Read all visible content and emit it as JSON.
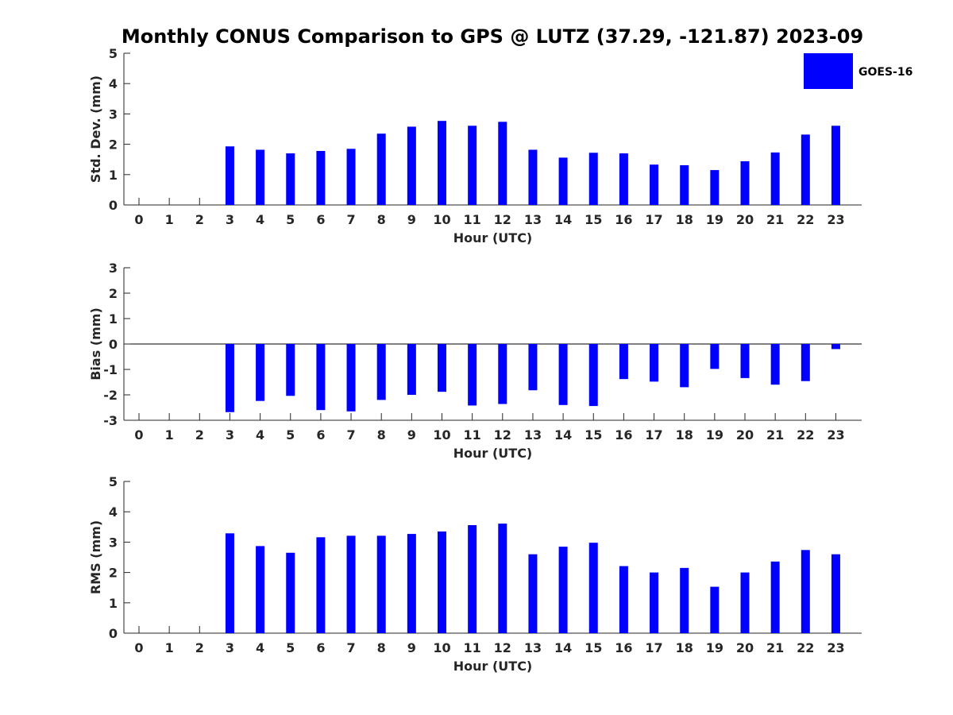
{
  "title": "Monthly CONUS Comparison to GPS @ LUTZ (37.29, -121.87) 2023-09",
  "legend": {
    "label": "GOES-16",
    "color": "#0000ff",
    "placement": "top-right"
  },
  "chart_data": [
    {
      "type": "bar",
      "categories": [
        "0",
        "1",
        "2",
        "3",
        "4",
        "5",
        "6",
        "7",
        "8",
        "9",
        "10",
        "11",
        "12",
        "13",
        "14",
        "15",
        "16",
        "17",
        "18",
        "19",
        "20",
        "21",
        "22",
        "23"
      ],
      "series": [
        {
          "name": "GOES-16",
          "values": [
            null,
            null,
            null,
            1.93,
            1.82,
            1.7,
            1.78,
            1.85,
            2.35,
            2.58,
            2.77,
            2.61,
            2.74,
            1.82,
            1.56,
            1.72,
            1.7,
            1.33,
            1.31,
            1.15,
            1.44,
            1.73,
            2.32,
            2.61
          ]
        }
      ],
      "xlabel": "Hour (UTC)",
      "ylabel": "Std. Dev. (mm)",
      "ylim": [
        0,
        5
      ],
      "yticks": [
        "0",
        "1",
        "2",
        "3",
        "4",
        "5"
      ],
      "grid": false
    },
    {
      "type": "bar",
      "categories": [
        "0",
        "1",
        "2",
        "3",
        "4",
        "5",
        "6",
        "7",
        "8",
        "9",
        "10",
        "11",
        "12",
        "13",
        "14",
        "15",
        "16",
        "17",
        "18",
        "19",
        "20",
        "21",
        "22",
        "23"
      ],
      "series": [
        {
          "name": "GOES-16",
          "values": [
            null,
            null,
            null,
            -2.68,
            -2.24,
            -2.04,
            -2.6,
            -2.65,
            -2.2,
            -2.0,
            -1.88,
            -2.42,
            -2.36,
            -1.82,
            -2.4,
            -2.44,
            -1.38,
            -1.48,
            -1.7,
            -0.98,
            -1.34,
            -1.6,
            -1.46,
            -0.2
          ]
        }
      ],
      "xlabel": "Hour (UTC)",
      "ylabel": "Bias (mm)",
      "ylim": [
        -3,
        3
      ],
      "yticks": [
        "-3",
        "-2",
        "-1",
        "0",
        "1",
        "2",
        "3"
      ],
      "grid": false
    },
    {
      "type": "bar",
      "categories": [
        "0",
        "1",
        "2",
        "3",
        "4",
        "5",
        "6",
        "7",
        "8",
        "9",
        "10",
        "11",
        "12",
        "13",
        "14",
        "15",
        "16",
        "17",
        "18",
        "19",
        "20",
        "21",
        "22",
        "23"
      ],
      "series": [
        {
          "name": "GOES-16",
          "values": [
            null,
            null,
            null,
            3.29,
            2.87,
            2.65,
            3.16,
            3.21,
            3.21,
            3.27,
            3.35,
            3.56,
            3.61,
            2.6,
            2.85,
            2.98,
            2.21,
            2.0,
            2.15,
            1.53,
            2.0,
            2.36,
            2.74,
            2.6
          ]
        }
      ],
      "xlabel": "Hour (UTC)",
      "ylabel": "RMS (mm)",
      "ylim": [
        0,
        5
      ],
      "yticks": [
        "0",
        "1",
        "2",
        "3",
        "4",
        "5"
      ],
      "grid": false
    }
  ]
}
